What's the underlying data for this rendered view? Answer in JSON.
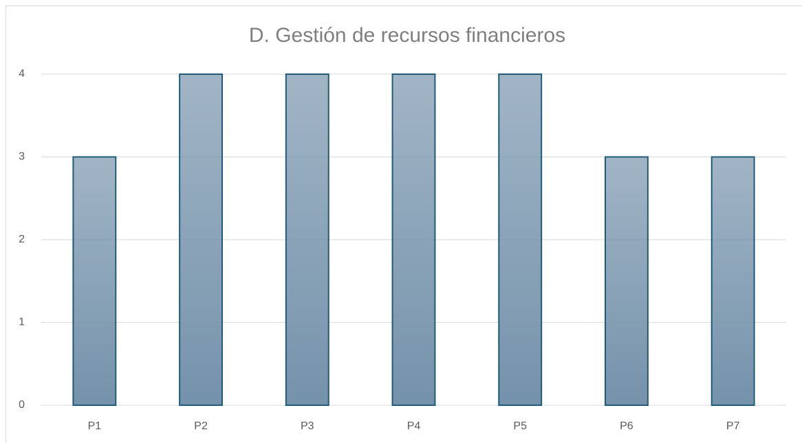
{
  "chart_data": {
    "type": "bar",
    "title": "D. Gestión de recursos financieros",
    "categories": [
      "P1",
      "P2",
      "P3",
      "P4",
      "P5",
      "P6",
      "P7"
    ],
    "values": [
      3,
      4,
      4,
      4,
      4,
      3,
      3
    ],
    "color": "#7592ab",
    "edgecolor": "#1f5a78",
    "ylim": [
      0,
      4
    ],
    "yticks": [
      0,
      1,
      2,
      3,
      4
    ],
    "grid": true
  }
}
